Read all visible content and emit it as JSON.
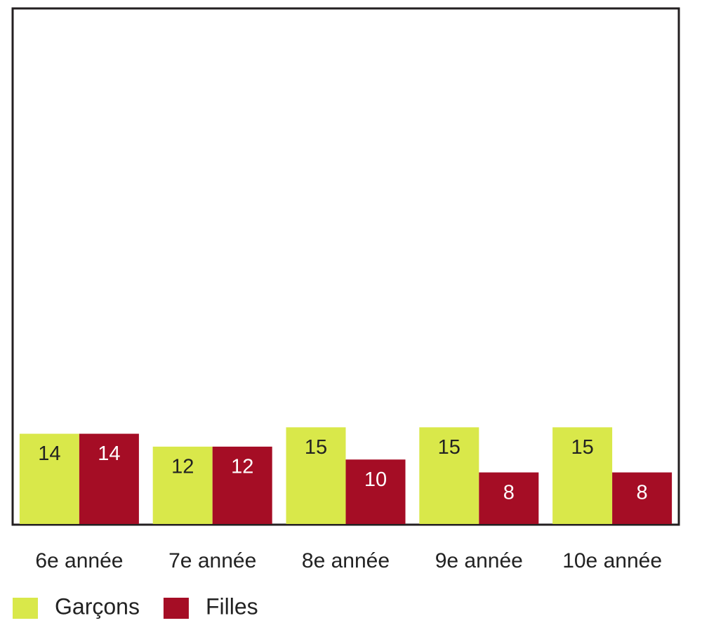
{
  "chart_data": {
    "type": "bar",
    "categories": [
      "6e année",
      "7e année",
      "8e année",
      "9e année",
      "10e année"
    ],
    "series": [
      {
        "name": "Garçons",
        "color": "#d9e84a",
        "values": [
          14,
          12,
          15,
          15,
          15
        ]
      },
      {
        "name": "Filles",
        "color": "#a50d25",
        "values": [
          14,
          12,
          10,
          8,
          8
        ]
      }
    ],
    "ylim": [
      0,
      80
    ]
  }
}
